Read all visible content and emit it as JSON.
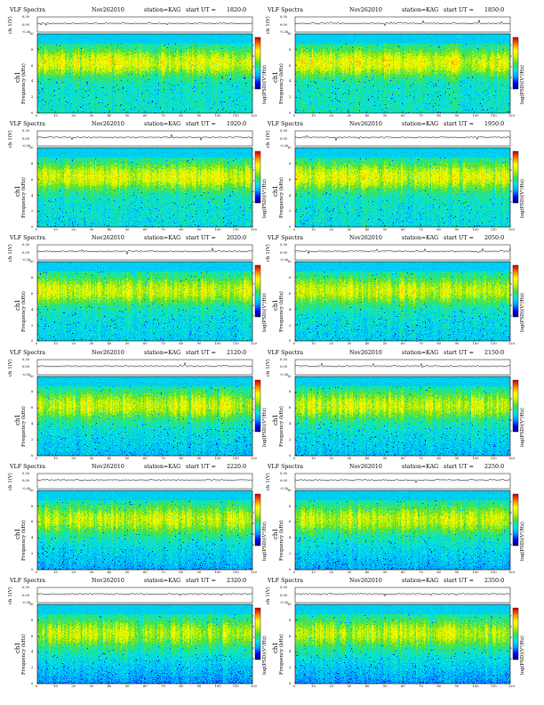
{
  "panel_labels": {
    "title": "VLF Spectra",
    "date": "Nov262010",
    "station": "station=KAG",
    "start": "start  UT  =",
    "ch_axis": "ch 1(V)",
    "freq_axis": "Frequency  (kHz)",
    "ch_label": "ch1",
    "colorbar_label": "log(PSD)(V²/Hz)",
    "x_axis": "Time  (sec)"
  },
  "colors": {
    "colormap": [
      "#000080",
      "#0000ff",
      "#00a0ff",
      "#00e8e8",
      "#40e040",
      "#c8f000",
      "#ffff00",
      "#ff8000",
      "#d80000"
    ]
  },
  "chart_data": [
    {
      "type": "heatmap",
      "start_ut": "1820:0",
      "xlim": [
        0,
        120
      ],
      "xticks": [
        0,
        10,
        20,
        30,
        40,
        50,
        60,
        70,
        80,
        90,
        100,
        110,
        120
      ],
      "ylim": [
        0,
        10
      ],
      "yticks": [
        0,
        2,
        4,
        6,
        8,
        10
      ],
      "ch_ylim": [
        -0.3,
        0.3
      ],
      "ch_ticks": [
        "0.30",
        "0.00",
        "-0.30"
      ],
      "cbar_ticks": [
        "3",
        "4",
        "5",
        "6",
        "7"
      ]
    },
    {
      "type": "heatmap",
      "start_ut": "1850:0",
      "xlim": [
        0,
        120
      ],
      "xticks": [
        0,
        10,
        20,
        30,
        40,
        50,
        60,
        70,
        80,
        90,
        100,
        110,
        120
      ],
      "ylim": [
        0,
        10
      ],
      "yticks": [
        0,
        2,
        4,
        6,
        8,
        10
      ],
      "ch_ylim": [
        -0.3,
        0.3
      ],
      "ch_ticks": [
        "0.30",
        "0.00",
        "-0.30"
      ],
      "cbar_ticks": [
        "3",
        "4",
        "5",
        "6",
        "7"
      ]
    },
    {
      "type": "heatmap",
      "start_ut": "1920:0",
      "xlim": [
        0,
        120
      ],
      "xticks": [
        0,
        10,
        20,
        30,
        40,
        50,
        60,
        70,
        80,
        90,
        100,
        110,
        120
      ],
      "ylim": [
        0,
        10
      ],
      "yticks": [
        0,
        2,
        4,
        6,
        8,
        10
      ],
      "ch_ylim": [
        -0.3,
        0.3
      ],
      "ch_ticks": [
        "0.30",
        "0.00",
        "-0.30"
      ],
      "cbar_ticks": [
        "3",
        "4",
        "5",
        "6",
        "7"
      ]
    },
    {
      "type": "heatmap",
      "start_ut": "1950:0",
      "xlim": [
        0,
        120
      ],
      "xticks": [
        0,
        10,
        20,
        30,
        40,
        50,
        60,
        70,
        80,
        90,
        100,
        110,
        120
      ],
      "ylim": [
        0,
        10
      ],
      "yticks": [
        0,
        2,
        4,
        6,
        8,
        10
      ],
      "ch_ylim": [
        -0.3,
        0.3
      ],
      "ch_ticks": [
        "0.30",
        "0.00",
        "-0.30"
      ],
      "cbar_ticks": [
        "3",
        "4",
        "5",
        "6",
        "7"
      ]
    },
    {
      "type": "heatmap",
      "start_ut": "2020:0",
      "xlim": [
        0,
        120
      ],
      "xticks": [
        0,
        10,
        20,
        30,
        40,
        50,
        60,
        70,
        80,
        90,
        100,
        110,
        120
      ],
      "ylim": [
        0,
        10
      ],
      "yticks": [
        0,
        2,
        4,
        6,
        8,
        10
      ],
      "ch_ylim": [
        -0.3,
        0.3
      ],
      "ch_ticks": [
        "0.30",
        "0.00",
        "-0.30"
      ],
      "cbar_ticks": [
        "3",
        "4",
        "5",
        "6",
        "7"
      ]
    },
    {
      "type": "heatmap",
      "start_ut": "2050:0",
      "xlim": [
        0,
        120
      ],
      "xticks": [
        0,
        10,
        20,
        30,
        40,
        50,
        60,
        70,
        80,
        90,
        100,
        110,
        120
      ],
      "ylim": [
        0,
        10
      ],
      "yticks": [
        0,
        2,
        4,
        6,
        8,
        10
      ],
      "ch_ylim": [
        -0.3,
        0.3
      ],
      "ch_ticks": [
        "0.30",
        "0.00",
        "-0.30"
      ],
      "cbar_ticks": [
        "3",
        "4",
        "5",
        "6",
        "7"
      ]
    },
    {
      "type": "heatmap",
      "start_ut": "2120:0",
      "xlim": [
        0,
        120
      ],
      "xticks": [
        0,
        10,
        20,
        30,
        40,
        50,
        60,
        70,
        80,
        90,
        100,
        110,
        120
      ],
      "ylim": [
        0,
        10
      ],
      "yticks": [
        0,
        2,
        4,
        6,
        8,
        10
      ],
      "ch_ylim": [
        -0.3,
        0.3
      ],
      "ch_ticks": [
        "0.30",
        "0.00",
        "-0.30"
      ],
      "cbar_ticks": [
        "3",
        "4",
        "5",
        "6",
        "7"
      ]
    },
    {
      "type": "heatmap",
      "start_ut": "2150:0",
      "xlim": [
        0,
        120
      ],
      "xticks": [
        0,
        10,
        20,
        30,
        40,
        50,
        60,
        70,
        80,
        90,
        100,
        110,
        120
      ],
      "ylim": [
        0,
        10
      ],
      "yticks": [
        0,
        2,
        4,
        6,
        8,
        10
      ],
      "ch_ylim": [
        -0.3,
        0.3
      ],
      "ch_ticks": [
        "0.30",
        "0.00",
        "-0.30"
      ],
      "cbar_ticks": [
        "3",
        "4",
        "5",
        "6",
        "7"
      ]
    },
    {
      "type": "heatmap",
      "start_ut": "2220:0",
      "xlim": [
        0,
        120
      ],
      "xticks": [
        0,
        10,
        20,
        30,
        40,
        50,
        60,
        70,
        80,
        90,
        100,
        110,
        120
      ],
      "ylim": [
        0,
        10
      ],
      "yticks": [
        0,
        2,
        4,
        6,
        8,
        10
      ],
      "ch_ylim": [
        -0.3,
        0.3
      ],
      "ch_ticks": [
        "0.30",
        "0.00",
        "-0.30"
      ],
      "cbar_ticks": [
        "3",
        "4",
        "5",
        "6",
        "7"
      ]
    },
    {
      "type": "heatmap",
      "start_ut": "2250:0",
      "xlim": [
        0,
        120
      ],
      "xticks": [
        0,
        10,
        20,
        30,
        40,
        50,
        60,
        70,
        80,
        90,
        100,
        110,
        120
      ],
      "ylim": [
        0,
        10
      ],
      "yticks": [
        0,
        2,
        4,
        6,
        8,
        10
      ],
      "ch_ylim": [
        -0.3,
        0.3
      ],
      "ch_ticks": [
        "0.30",
        "0.00",
        "-0.30"
      ],
      "cbar_ticks": [
        "3",
        "4",
        "5",
        "6",
        "7"
      ]
    },
    {
      "type": "heatmap",
      "start_ut": "2320:0",
      "xlim": [
        0,
        120
      ],
      "xticks": [
        0,
        10,
        20,
        30,
        40,
        50,
        60,
        70,
        80,
        90,
        100,
        110,
        120
      ],
      "ylim": [
        0,
        10
      ],
      "yticks": [
        0,
        2,
        4,
        6,
        8,
        10
      ],
      "ch_ylim": [
        -0.3,
        0.3
      ],
      "ch_ticks": [
        "0.30",
        "0.00",
        "-0.30"
      ],
      "cbar_ticks": [
        "3",
        "4",
        "5",
        "6",
        "7"
      ]
    },
    {
      "type": "heatmap",
      "start_ut": "2350:0",
      "xlim": [
        0,
        120
      ],
      "xticks": [
        0,
        10,
        20,
        30,
        40,
        50,
        60,
        70,
        80,
        90,
        100,
        110,
        120
      ],
      "ylim": [
        0,
        10
      ],
      "yticks": [
        0,
        2,
        4,
        6,
        8,
        10
      ],
      "ch_ylim": [
        -0.3,
        0.3
      ],
      "ch_ticks": [
        "0.30",
        "0.00",
        "-0.30"
      ],
      "cbar_ticks": [
        "3",
        "4",
        "5",
        "6",
        "7"
      ]
    }
  ]
}
